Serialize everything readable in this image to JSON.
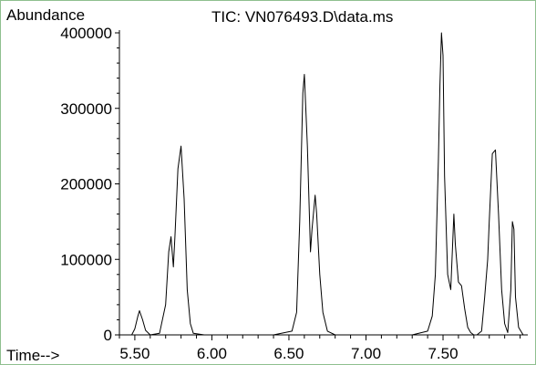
{
  "chart_data": {
    "type": "line",
    "title": "TIC: VN076493.D\\data.ms",
    "ylabel": "Abundance",
    "xlabel": "Time-->",
    "xlim": [
      5.4,
      8.05
    ],
    "ylim": [
      0,
      400000
    ],
    "x_ticks": [
      5.5,
      6.0,
      6.5,
      7.0,
      7.5
    ],
    "x_tick_labels": [
      "5.50",
      "6.00",
      "6.50",
      "7.00",
      "7.50"
    ],
    "y_ticks": [
      0,
      100000,
      200000,
      300000,
      400000
    ],
    "y_tick_labels": [
      "0",
      "100000",
      "200000",
      "300000",
      "400000"
    ],
    "series": [
      {
        "x": [
          5.4,
          5.48,
          5.5,
          5.52,
          5.53,
          5.55,
          5.57,
          5.6,
          5.66,
          5.7,
          5.72,
          5.735,
          5.75,
          5.76,
          5.78,
          5.8,
          5.82,
          5.84,
          5.86,
          5.88,
          5.95,
          6.1,
          6.4,
          6.52,
          6.55,
          6.57,
          6.59,
          6.6,
          6.62,
          6.64,
          6.65,
          6.67,
          6.68,
          6.7,
          6.72,
          6.75,
          6.8,
          7.0,
          7.3,
          7.4,
          7.43,
          7.45,
          7.47,
          7.48,
          7.49,
          7.5,
          7.51,
          7.53,
          7.55,
          7.57,
          7.58,
          7.6,
          7.62,
          7.64,
          7.66,
          7.68,
          7.7,
          7.72,
          7.75,
          7.77,
          7.79,
          7.8,
          7.82,
          7.84,
          7.86,
          7.88,
          7.9,
          7.92,
          7.94,
          7.95,
          7.96,
          7.97,
          7.99,
          8.02,
          8.05
        ],
        "y": [
          0,
          0,
          8000,
          25000,
          32000,
          20000,
          6000,
          0,
          2000,
          40000,
          110000,
          130000,
          90000,
          130000,
          220000,
          250000,
          180000,
          60000,
          15000,
          2000,
          0,
          0,
          0,
          5000,
          30000,
          150000,
          320000,
          345000,
          250000,
          110000,
          140000,
          185000,
          160000,
          80000,
          30000,
          5000,
          0,
          0,
          0,
          5000,
          25000,
          80000,
          230000,
          330000,
          400000,
          370000,
          210000,
          80000,
          60000,
          160000,
          120000,
          70000,
          65000,
          35000,
          10000,
          3000,
          0,
          0,
          5000,
          50000,
          100000,
          150000,
          240000,
          245000,
          160000,
          60000,
          15000,
          3000,
          60000,
          150000,
          140000,
          50000,
          10000,
          0,
          0
        ]
      }
    ]
  }
}
